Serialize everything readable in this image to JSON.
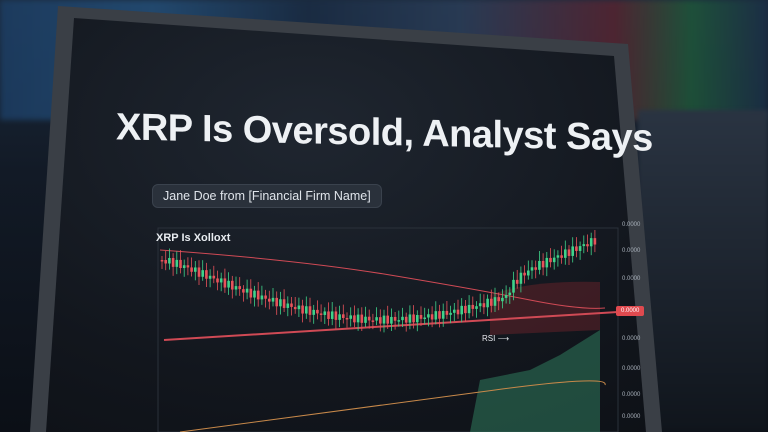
{
  "headline": "XRP Is Oversold, Analyst Says",
  "byline": "Jane Doe from [Financial Firm Name]",
  "chart": {
    "title": "XRP Is Xolloxt",
    "y_labels": [
      "0.0000",
      "0.0000",
      "0.0000",
      "0.0000",
      "0.0000",
      "0.0000",
      "0.0000"
    ],
    "price_tag": "0.0000",
    "indicator_label": "RSI",
    "colors": {
      "up": "#3fd38a",
      "down": "#e8525a",
      "ma": "#d04a55",
      "area": "#2f7a5c"
    }
  }
}
